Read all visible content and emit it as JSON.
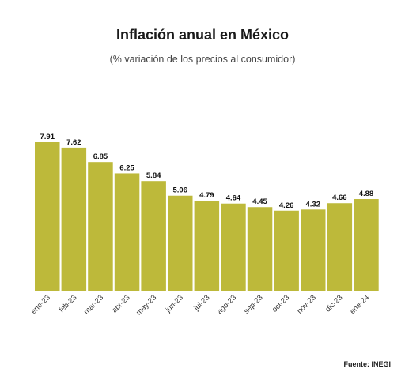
{
  "chart_data": {
    "type": "bar",
    "title": "Inflación anual en México",
    "subtitle": "(% variación de los precios al consumidor)",
    "categories": [
      "ene-23",
      "feb-23",
      "mar-23",
      "abr-23",
      "may-23",
      "jun-23",
      "jul-23",
      "ago-23",
      "sep-23",
      "oct-23",
      "nov-23",
      "dic-23",
      "ene-24"
    ],
    "values": [
      7.91,
      7.62,
      6.85,
      6.25,
      5.84,
      5.06,
      4.79,
      4.64,
      4.45,
      4.26,
      4.32,
      4.66,
      4.88
    ],
    "value_labels": [
      "7.91",
      "7.62",
      "6.85",
      "6.25",
      "5.84",
      "5.06",
      "4.79",
      "4.64",
      "4.45",
      "4.26",
      "4.32",
      "4.66",
      "4.88"
    ],
    "ylim": [
      0,
      7.91
    ],
    "grid": false,
    "legend": "none",
    "bar_color": "#bdb93a",
    "source": "Fuente: INEGI"
  }
}
